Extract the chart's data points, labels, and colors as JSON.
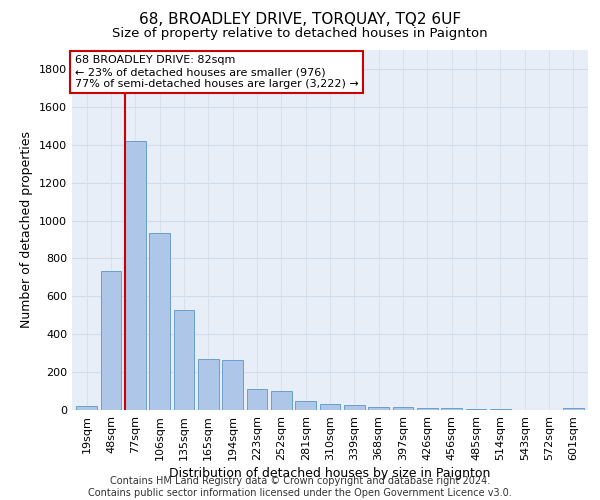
{
  "title": "68, BROADLEY DRIVE, TORQUAY, TQ2 6UF",
  "subtitle": "Size of property relative to detached houses in Paignton",
  "xlabel": "Distribution of detached houses by size in Paignton",
  "ylabel": "Number of detached properties",
  "categories": [
    "19sqm",
    "48sqm",
    "77sqm",
    "106sqm",
    "135sqm",
    "165sqm",
    "194sqm",
    "223sqm",
    "252sqm",
    "281sqm",
    "310sqm",
    "339sqm",
    "368sqm",
    "397sqm",
    "426sqm",
    "456sqm",
    "485sqm",
    "514sqm",
    "543sqm",
    "572sqm",
    "601sqm"
  ],
  "values": [
    20,
    735,
    1420,
    935,
    530,
    270,
    265,
    110,
    100,
    50,
    30,
    25,
    15,
    15,
    10,
    8,
    3,
    5,
    2,
    2,
    10
  ],
  "bar_color": "#aec6e8",
  "bar_edge_color": "#6a9fd0",
  "vline_color": "#cc0000",
  "annotation_text": "68 BROADLEY DRIVE: 82sqm\n← 23% of detached houses are smaller (976)\n77% of semi-detached houses are larger (3,222) →",
  "annotation_box_facecolor": "#ffffff",
  "annotation_box_edgecolor": "#cc0000",
  "ylim": [
    0,
    1900
  ],
  "yticks": [
    0,
    200,
    400,
    600,
    800,
    1000,
    1200,
    1400,
    1600,
    1800
  ],
  "grid_color": "#d0dcea",
  "background_color": "#e8eef8",
  "footer": "Contains HM Land Registry data © Crown copyright and database right 2024.\nContains public sector information licensed under the Open Government Licence v3.0.",
  "title_fontsize": 11,
  "subtitle_fontsize": 9.5,
  "xlabel_fontsize": 9,
  "ylabel_fontsize": 9,
  "tick_fontsize": 8,
  "annotation_fontsize": 8,
  "footer_fontsize": 7
}
